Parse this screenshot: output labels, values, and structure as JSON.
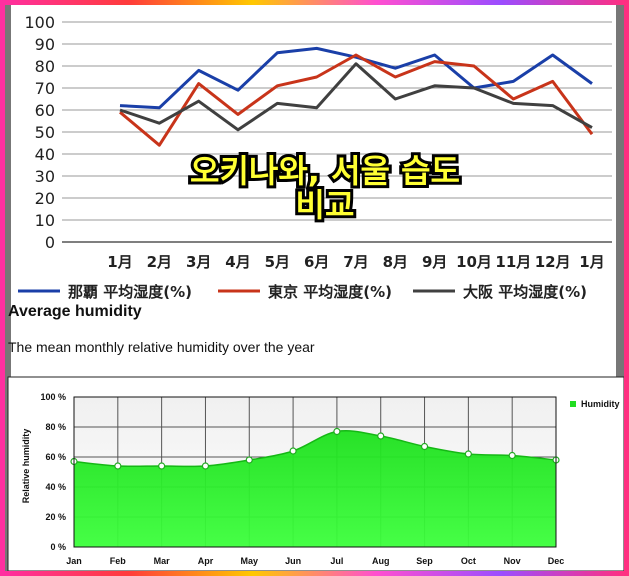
{
  "overlay_caption": [
    "오키나와, 서울 습도",
    "비교"
  ],
  "section": {
    "title": "Average humidity",
    "subtitle": "The mean monthly relative humidity over the year"
  },
  "chart_data": [
    {
      "type": "line",
      "title": "",
      "xlabel": "",
      "ylabel": "",
      "categories": [
        "1月",
        "2月",
        "3月",
        "4月",
        "5月",
        "6月",
        "7月",
        "8月",
        "9月",
        "10月",
        "11月",
        "12月",
        "1月"
      ],
      "ylim": [
        0,
        100
      ],
      "yticks": [
        "0",
        "10",
        "20",
        "30",
        "40",
        "50",
        "60",
        "70",
        "80",
        "90",
        "100"
      ],
      "grid": true,
      "legend": "bottom",
      "series": [
        {
          "name": "那覇 平均湿度(%)",
          "color": "#1a3fa8",
          "values": [
            62,
            61,
            78,
            69,
            86,
            88,
            84,
            79,
            85,
            70,
            73,
            85,
            72
          ]
        },
        {
          "name": "東京 平均湿度(%)",
          "color": "#c8341a",
          "values": [
            59,
            44,
            72,
            58,
            71,
            75,
            85,
            75,
            82,
            80,
            65,
            73,
            49
          ]
        },
        {
          "name": "大阪 平均湿度(%)",
          "color": "#404040",
          "values": [
            60,
            54,
            64,
            51,
            63,
            61,
            81,
            65,
            71,
            70,
            63,
            62,
            52
          ]
        }
      ]
    },
    {
      "type": "area",
      "title": "",
      "xlabel": "",
      "ylabel": "Relative humidity",
      "categories": [
        "Jan",
        "Feb",
        "Mar",
        "Apr",
        "May",
        "Jun",
        "Jul",
        "Aug",
        "Sep",
        "Oct",
        "Nov",
        "Dec"
      ],
      "ylim": [
        0,
        100
      ],
      "yticks": [
        "0 %",
        "20 %",
        "40 %",
        "60 %",
        "80 %",
        "100 %"
      ],
      "grid": true,
      "legend": "top-right",
      "series": [
        {
          "name": "Humidity",
          "color": "#22dd22",
          "values": [
            57,
            54,
            54,
            54,
            58,
            64,
            77,
            74,
            67,
            62,
            61,
            58
          ]
        }
      ]
    }
  ]
}
